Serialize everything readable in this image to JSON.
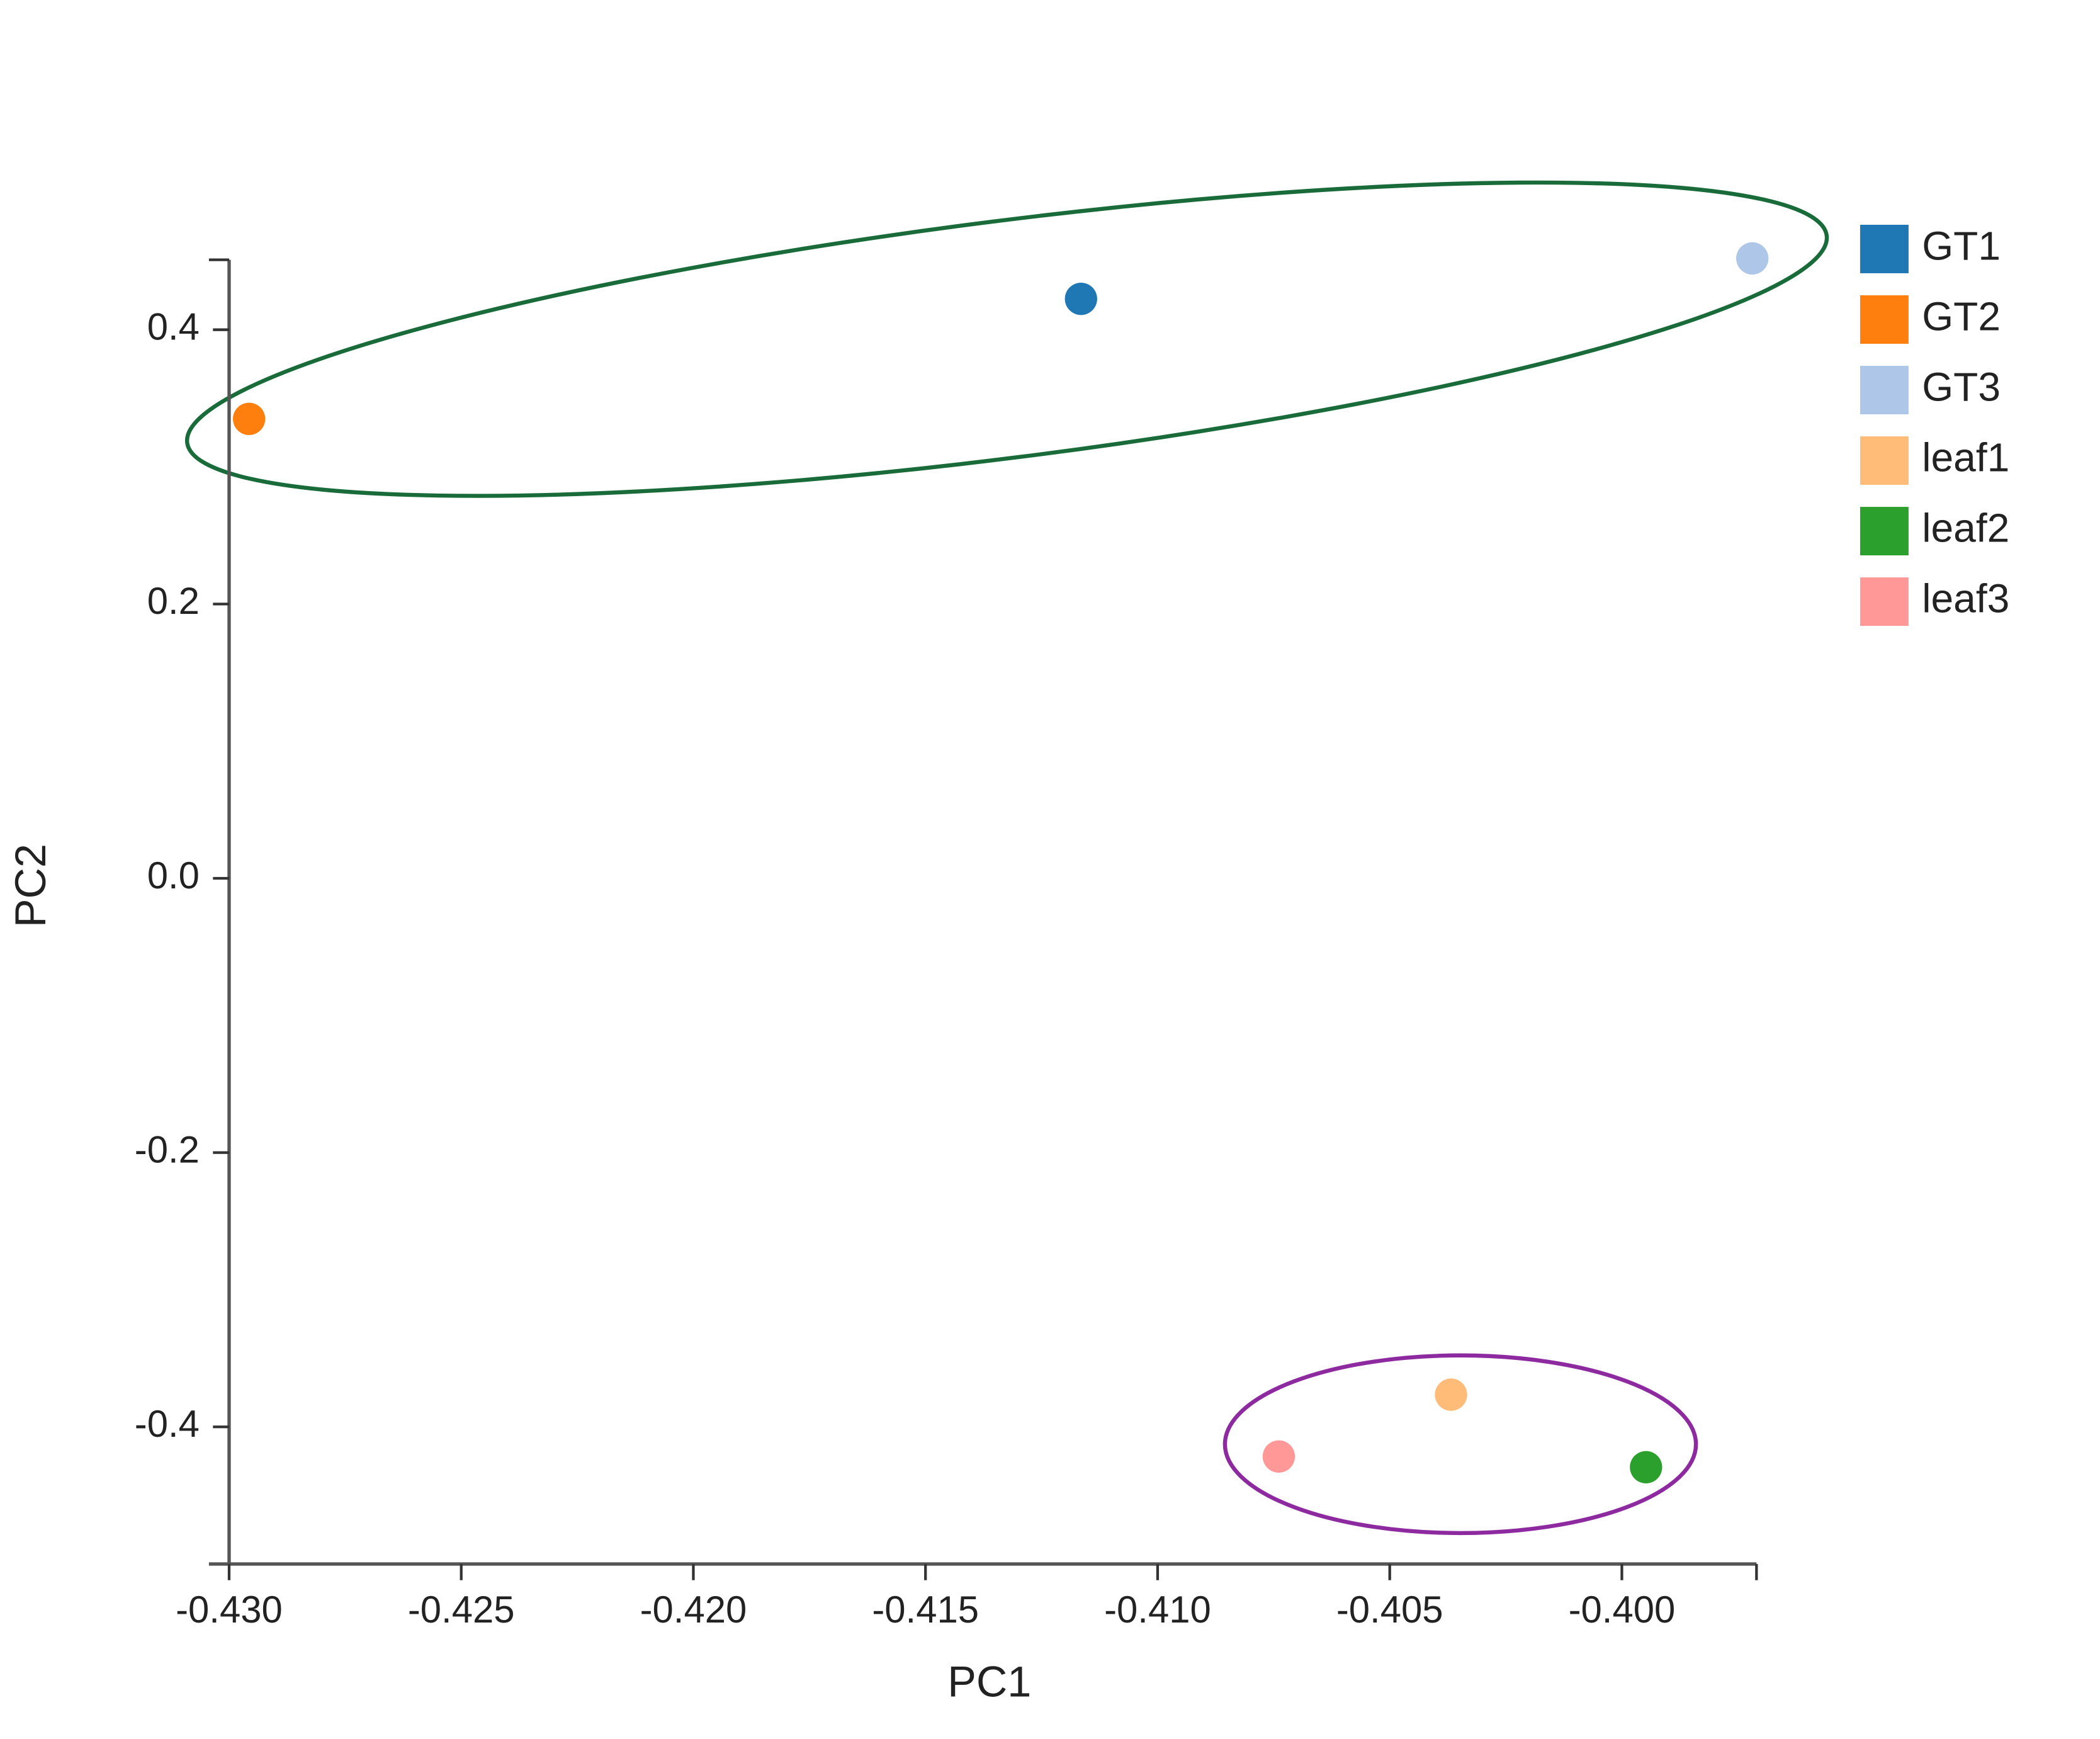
{
  "chart_data": {
    "type": "scatter",
    "x_label": "PC1",
    "y_label": "PC2",
    "xlim": [
      -0.43,
      -0.3971
    ],
    "ylim": [
      -0.5,
      0.451
    ],
    "xticks": [
      {
        "value": -0.43,
        "label": "-0.430"
      },
      -0.425,
      {
        "value": -0.42,
        "label": "-0.420"
      },
      -0.415,
      {
        "value": -0.41,
        "label": "-0.410"
      },
      -0.405,
      {
        "value": -0.4,
        "label": "-0.400"
      }
    ],
    "yticks": [
      -0.4,
      -0.2,
      {
        "value": 0,
        "label": "0.0"
      },
      0.2,
      0.4
    ],
    "legend": "right",
    "series": [
      {
        "name": "GT1",
        "color": "#1f77b4",
        "x": [
          -0.41165
        ],
        "values": [
          0.4225
        ]
      },
      {
        "name": "GT2",
        "color": "#ff7f0e",
        "x": [
          -0.42957
        ],
        "values": [
          0.335
        ]
      },
      {
        "name": "GT3",
        "color": "#aec7e8",
        "x": [
          -0.39719
        ],
        "values": [
          0.452
        ]
      },
      {
        "name": "leaf1",
        "color": "#ffbb78",
        "x": [
          -0.40368
        ],
        "values": [
          -0.3765
        ]
      },
      {
        "name": "leaf2",
        "color": "#2ca02c",
        "x": [
          -0.39948
        ],
        "values": [
          -0.4294
        ]
      },
      {
        "name": "leaf3",
        "color": "#ff9896",
        "x": [
          -0.40739
        ],
        "values": [
          -0.4216
        ]
      }
    ]
  }
}
